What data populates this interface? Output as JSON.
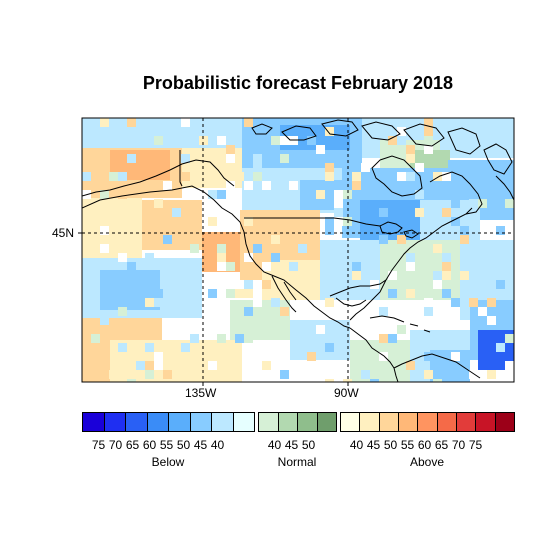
{
  "title": "Probabilistic forecast February 2018",
  "axes": {
    "lat_label": "45N",
    "lon_labels": [
      "135W",
      "90W"
    ]
  },
  "legend": {
    "below": {
      "name": "Below",
      "ticks": [
        "75",
        "70",
        "65",
        "60",
        "55",
        "50",
        "45",
        "40"
      ],
      "colors": [
        "#1a00d9",
        "#1f2ff2",
        "#2960f5",
        "#3a8cf7",
        "#5aaefb",
        "#88ccff",
        "#bce8ff",
        "#e6ffff"
      ]
    },
    "normal": {
      "name": "Normal",
      "ticks": [
        "40",
        "45",
        "50"
      ],
      "colors": [
        "#d6f0d6",
        "#b2d9b0",
        "#8fbe8c",
        "#6f9e6c"
      ]
    },
    "above": {
      "name": "Above",
      "ticks": [
        "40",
        "45",
        "50",
        "55",
        "60",
        "65",
        "70",
        "75"
      ],
      "colors": [
        "#ffffe6",
        "#fff0c0",
        "#ffd69a",
        "#ffb878",
        "#ff9460",
        "#f56a48",
        "#e23c3a",
        "#c81426",
        "#9c0018"
      ]
    }
  },
  "map_fill_colors": {
    "blue_light": "#bce8ff",
    "blue_mid": "#88ccff",
    "blue_strong": "#5aaefb",
    "blue_deep": "#2960f5",
    "orange_light": "#fff0c0",
    "orange_mid": "#ffd69a",
    "orange_strong": "#ffb878",
    "green_light": "#d6f0d6",
    "green_mid": "#b2d9b0",
    "white": "#ffffff"
  }
}
